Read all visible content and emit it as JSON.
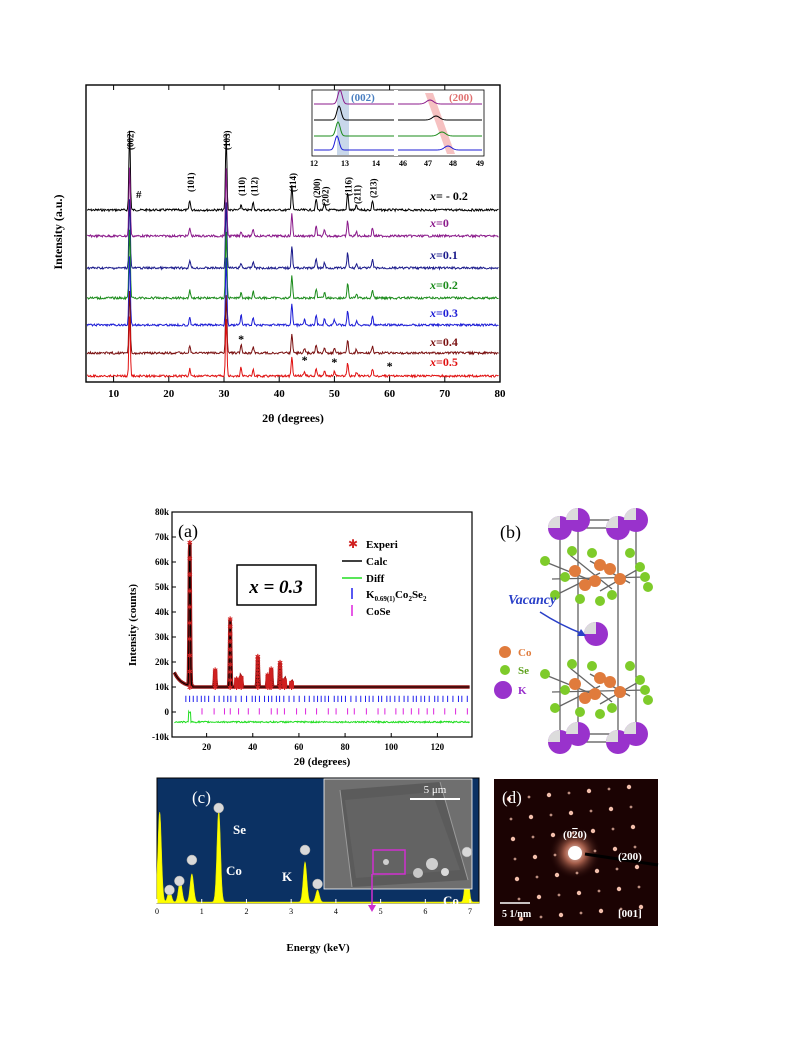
{
  "figure1": {
    "chart_data": {
      "type": "line",
      "xlabel": "2θ (degrees)",
      "ylabel": "Intensity (a.u.)",
      "xlim": [
        5,
        80
      ],
      "x_ticks": [
        "10",
        "20",
        "30",
        "40",
        "50",
        "60",
        "70",
        "80"
      ],
      "series": [
        {
          "name": "x= - 0.2",
          "color": "#000000"
        },
        {
          "name": "x=0",
          "color": "#8b1a8b"
        },
        {
          "name": "x=0.1",
          "color": "#1a1a8b"
        },
        {
          "name": "x=0.2",
          "color": "#1a8b1a"
        },
        {
          "name": "x=0.3",
          "color": "#1c1cd6"
        },
        {
          "name": "x=0.4",
          "color": "#7a1010"
        },
        {
          "name": "x=0.5",
          "color": "#e01010"
        }
      ],
      "peaks": [
        {
          "x": 12.9,
          "h": 1.0
        },
        {
          "x": 23.8,
          "h": 0.12
        },
        {
          "x": 30.4,
          "h": 0.95
        },
        {
          "x": 33.1,
          "h": 0.07
        },
        {
          "x": 35.3,
          "h": 0.1
        },
        {
          "x": 42.3,
          "h": 0.32
        },
        {
          "x": 46.7,
          "h": 0.14
        },
        {
          "x": 48.2,
          "h": 0.08
        },
        {
          "x": 52.4,
          "h": 0.22
        },
        {
          "x": 54.0,
          "h": 0.06
        },
        {
          "x": 56.9,
          "h": 0.12
        }
      ],
      "peak_labels": [
        {
          "x": 12.9,
          "text": "(002)"
        },
        {
          "x": 23.8,
          "text": "(101)"
        },
        {
          "x": 30.4,
          "text": "(103)"
        },
        {
          "x": 33.1,
          "text": "(110)"
        },
        {
          "x": 35.3,
          "text": "(112)"
        },
        {
          "x": 42.3,
          "text": "(114)"
        },
        {
          "x": 46.7,
          "text": "(200)"
        },
        {
          "x": 48.2,
          "text": "(202)"
        },
        {
          "x": 52.4,
          "text": "(116)"
        },
        {
          "x": 54.0,
          "text": "(211)"
        },
        {
          "x": 56.9,
          "text": "(213)"
        }
      ],
      "hash_mark": "#",
      "star_mark": "*",
      "inset": {
        "labels": [
          "(002)",
          "(200)"
        ],
        "x_ticks_left": [
          "12",
          "13",
          "14"
        ],
        "x_ticks_right": [
          "46",
          "47",
          "48",
          "49"
        ]
      }
    }
  },
  "figure2": {
    "a": {
      "label": "(a)",
      "composition": "x = 0.3",
      "chart_data": {
        "type": "line",
        "xlabel": "2θ (degrees)",
        "ylabel": "Intensity (counts)",
        "xlim": [
          5,
          135
        ],
        "ylim": [
          -10000,
          80000
        ],
        "x_ticks": [
          "20",
          "40",
          "60",
          "80",
          "100",
          "120"
        ],
        "y_ticks": [
          "-10k",
          "0",
          "10k",
          "20k",
          "30k",
          "40k",
          "50k",
          "60k",
          "70k",
          "80k"
        ],
        "legend": [
          "Experi",
          "Calc",
          "Diff",
          "K0.69(1)Co2Se2",
          "CoSe"
        ],
        "legend_formula": {
          "base": "K",
          "sub1": "0.69(1)",
          "mid": "Co",
          "sub2": "2",
          "end": "Se",
          "sub3": "2"
        },
        "peaks": [
          {
            "x": 12.7,
            "y": 68000
          },
          {
            "x": 23.7,
            "y": 17000
          },
          {
            "x": 30.2,
            "y": 37500
          },
          {
            "x": 33.0,
            "y": 13500
          },
          {
            "x": 35.0,
            "y": 14000
          },
          {
            "x": 42.2,
            "y": 22500
          },
          {
            "x": 46.5,
            "y": 15000
          },
          {
            "x": 48.0,
            "y": 17500
          },
          {
            "x": 51.8,
            "y": 20000
          },
          {
            "x": 53.8,
            "y": 13000
          },
          {
            "x": 56.8,
            "y": 12000
          }
        ],
        "baseline": 10000,
        "diff_offset": -4000
      }
    },
    "b": {
      "label": "(b)",
      "vacancy": "Vacancy",
      "legend": [
        {
          "name": "Co",
          "color": "#e07b3c"
        },
        {
          "name": "Se",
          "color": "#7ecb2a"
        },
        {
          "name": "K",
          "color": "#9932cc"
        }
      ]
    },
    "c": {
      "label": "(c)",
      "chart_data": {
        "type": "line",
        "xlabel": "Energy (keV)",
        "xlim": [
          0,
          7.2
        ],
        "x_ticks": [
          "0",
          "1",
          "2",
          "3",
          "4",
          "5",
          "6",
          "7"
        ],
        "peak_labels": [
          "Se",
          "Co",
          "K",
          "Co"
        ],
        "scale_bar": "5 μm"
      }
    },
    "d": {
      "label": "(d)",
      "spot_labels": [
        "(0",
        "2",
        "0)",
        "(200)"
      ],
      "scale_bar": "5 1/nm",
      "zone_axis": "[001]"
    }
  }
}
